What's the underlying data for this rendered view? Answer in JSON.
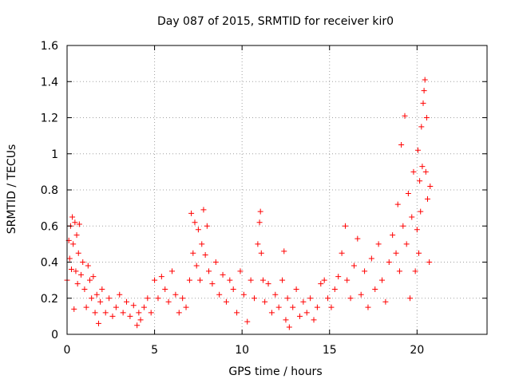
{
  "chart_data": {
    "type": "scatter",
    "title": "Day 087 of 2015, SRMTID for receiver kir0",
    "xlabel": "GPS time / hours",
    "ylabel": "SRMTID / TECUs",
    "xlim": [
      0,
      24
    ],
    "ylim": [
      0,
      1.6
    ],
    "xticks": [
      0,
      5,
      10,
      15,
      20
    ],
    "yticks": [
      0,
      0.2,
      0.4,
      0.6,
      0.8,
      1.0,
      1.2,
      1.4,
      1.6
    ],
    "xtick_labels": [
      "0",
      "5",
      "10",
      "15",
      "20"
    ],
    "ytick_labels": [
      "0",
      "0.2",
      "0.4",
      "0.6",
      "0.8",
      "1",
      "1.2",
      "1.4",
      "1.6"
    ],
    "grid": true,
    "marker": "+",
    "color": "#ff0000",
    "series": [
      {
        "name": "kir0",
        "points": [
          [
            0.0,
            0.3
          ],
          [
            0.1,
            0.52
          ],
          [
            0.15,
            0.42
          ],
          [
            0.2,
            0.6
          ],
          [
            0.25,
            0.36
          ],
          [
            0.3,
            0.65
          ],
          [
            0.35,
            0.5
          ],
          [
            0.4,
            0.14
          ],
          [
            0.45,
            0.62
          ],
          [
            0.5,
            0.35
          ],
          [
            0.55,
            0.55
          ],
          [
            0.6,
            0.28
          ],
          [
            0.65,
            0.45
          ],
          [
            0.7,
            0.61
          ],
          [
            0.8,
            0.33
          ],
          [
            0.9,
            0.4
          ],
          [
            1.0,
            0.25
          ],
          [
            1.1,
            0.15
          ],
          [
            1.2,
            0.38
          ],
          [
            1.3,
            0.3
          ],
          [
            1.4,
            0.2
          ],
          [
            1.5,
            0.32
          ],
          [
            1.6,
            0.12
          ],
          [
            1.7,
            0.22
          ],
          [
            1.8,
            0.06
          ],
          [
            1.9,
            0.18
          ],
          [
            2.0,
            0.25
          ],
          [
            2.2,
            0.12
          ],
          [
            2.4,
            0.2
          ],
          [
            2.6,
            0.1
          ],
          [
            2.8,
            0.15
          ],
          [
            3.0,
            0.22
          ],
          [
            3.2,
            0.12
          ],
          [
            3.4,
            0.18
          ],
          [
            3.6,
            0.1
          ],
          [
            3.8,
            0.16
          ],
          [
            4.0,
            0.05
          ],
          [
            4.1,
            0.12
          ],
          [
            4.2,
            0.08
          ],
          [
            4.4,
            0.15
          ],
          [
            4.6,
            0.2
          ],
          [
            4.8,
            0.12
          ],
          [
            5.0,
            0.3
          ],
          [
            5.2,
            0.2
          ],
          [
            5.4,
            0.32
          ],
          [
            5.6,
            0.25
          ],
          [
            5.8,
            0.18
          ],
          [
            6.0,
            0.35
          ],
          [
            6.2,
            0.22
          ],
          [
            6.4,
            0.12
          ],
          [
            6.6,
            0.2
          ],
          [
            6.8,
            0.15
          ],
          [
            7.0,
            0.3
          ],
          [
            7.1,
            0.67
          ],
          [
            7.2,
            0.45
          ],
          [
            7.3,
            0.62
          ],
          [
            7.4,
            0.38
          ],
          [
            7.5,
            0.58
          ],
          [
            7.6,
            0.3
          ],
          [
            7.7,
            0.5
          ],
          [
            7.8,
            0.69
          ],
          [
            7.9,
            0.44
          ],
          [
            8.0,
            0.6
          ],
          [
            8.1,
            0.35
          ],
          [
            8.3,
            0.28
          ],
          [
            8.5,
            0.4
          ],
          [
            8.7,
            0.22
          ],
          [
            8.9,
            0.33
          ],
          [
            9.1,
            0.18
          ],
          [
            9.3,
            0.3
          ],
          [
            9.5,
            0.25
          ],
          [
            9.7,
            0.12
          ],
          [
            9.9,
            0.35
          ],
          [
            10.1,
            0.22
          ],
          [
            10.3,
            0.07
          ],
          [
            10.5,
            0.3
          ],
          [
            10.7,
            0.2
          ],
          [
            10.9,
            0.5
          ],
          [
            11.0,
            0.62
          ],
          [
            11.05,
            0.68
          ],
          [
            11.1,
            0.45
          ],
          [
            11.2,
            0.3
          ],
          [
            11.3,
            0.18
          ],
          [
            11.5,
            0.28
          ],
          [
            11.7,
            0.12
          ],
          [
            11.9,
            0.22
          ],
          [
            12.1,
            0.15
          ],
          [
            12.3,
            0.3
          ],
          [
            12.4,
            0.46
          ],
          [
            12.5,
            0.08
          ],
          [
            12.6,
            0.2
          ],
          [
            12.7,
            0.04
          ],
          [
            12.9,
            0.15
          ],
          [
            13.1,
            0.25
          ],
          [
            13.3,
            0.1
          ],
          [
            13.5,
            0.18
          ],
          [
            13.7,
            0.12
          ],
          [
            13.9,
            0.2
          ],
          [
            14.1,
            0.08
          ],
          [
            14.3,
            0.15
          ],
          [
            14.5,
            0.28
          ],
          [
            14.7,
            0.3
          ],
          [
            14.9,
            0.2
          ],
          [
            15.1,
            0.15
          ],
          [
            15.3,
            0.25
          ],
          [
            15.5,
            0.32
          ],
          [
            15.7,
            0.45
          ],
          [
            15.9,
            0.6
          ],
          [
            16.0,
            0.3
          ],
          [
            16.2,
            0.2
          ],
          [
            16.4,
            0.38
          ],
          [
            16.6,
            0.53
          ],
          [
            16.8,
            0.22
          ],
          [
            17.0,
            0.35
          ],
          [
            17.2,
            0.15
          ],
          [
            17.4,
            0.42
          ],
          [
            17.6,
            0.25
          ],
          [
            17.8,
            0.5
          ],
          [
            18.0,
            0.3
          ],
          [
            18.2,
            0.18
          ],
          [
            18.4,
            0.4
          ],
          [
            18.6,
            0.55
          ],
          [
            18.8,
            0.45
          ],
          [
            18.9,
            0.72
          ],
          [
            19.0,
            0.35
          ],
          [
            19.1,
            1.05
          ],
          [
            19.2,
            0.6
          ],
          [
            19.3,
            1.21
          ],
          [
            19.4,
            0.5
          ],
          [
            19.5,
            0.78
          ],
          [
            19.6,
            0.2
          ],
          [
            19.7,
            0.65
          ],
          [
            19.8,
            0.9
          ],
          [
            19.9,
            0.35
          ],
          [
            20.0,
            0.58
          ],
          [
            20.05,
            1.02
          ],
          [
            20.1,
            0.45
          ],
          [
            20.15,
            0.85
          ],
          [
            20.2,
            0.68
          ],
          [
            20.25,
            1.15
          ],
          [
            20.3,
            0.93
          ],
          [
            20.35,
            1.28
          ],
          [
            20.4,
            1.35
          ],
          [
            20.45,
            1.41
          ],
          [
            20.5,
            0.9
          ],
          [
            20.55,
            1.2
          ],
          [
            20.6,
            0.75
          ],
          [
            20.7,
            0.4
          ],
          [
            20.75,
            0.82
          ]
        ]
      }
    ]
  }
}
